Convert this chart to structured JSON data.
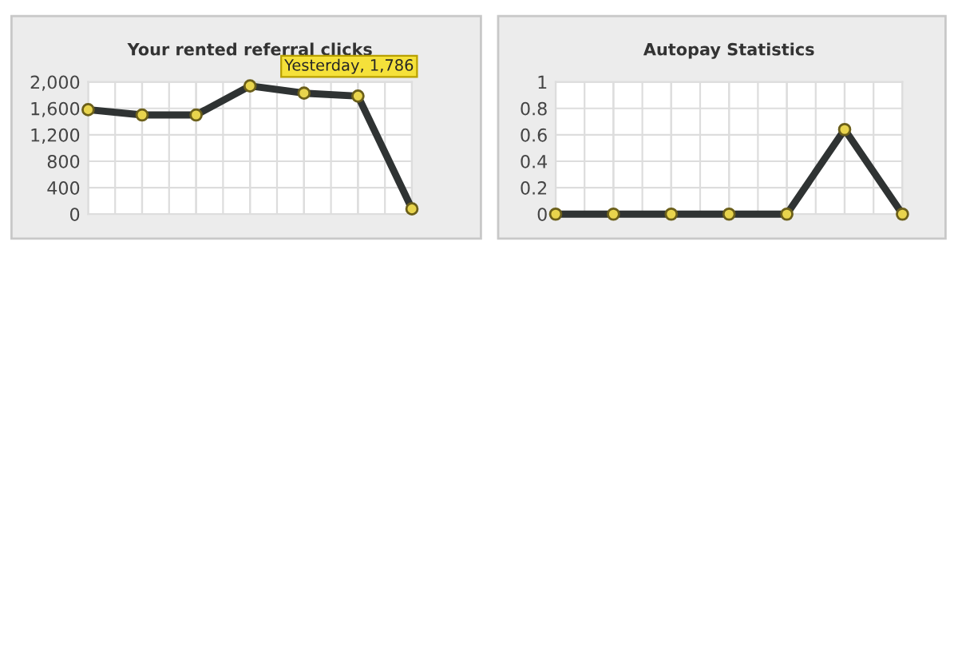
{
  "chart_data": [
    {
      "type": "line",
      "title": "Your rented referral clicks",
      "categories": [
        null,
        null,
        null,
        null,
        null,
        null,
        null
      ],
      "series": [
        {
          "color": "#2f3333",
          "values": [
            1580,
            1500,
            1500,
            1940,
            1830,
            1786,
            80
          ]
        }
      ],
      "ylim": [
        0,
        2000
      ],
      "yticks": [
        0,
        {
          "value": 400,
          "label": "400"
        },
        {
          "value": 800,
          "label": "800"
        },
        {
          "value": 1200,
          "label": "1,200"
        },
        {
          "value": 1600,
          "label": "1,600"
        },
        {
          "value": 2000,
          "label": "2,000"
        }
      ],
      "annotations": [
        {
          "text": "Yesterday, 1,786",
          "y": 1786
        }
      ],
      "grid": true,
      "marker": "circle",
      "line_style": "solid"
    },
    {
      "type": "line",
      "title": "Autopay Statistics",
      "categories": [
        null,
        null,
        null,
        null,
        null,
        null,
        null
      ],
      "series": [
        {
          "color": "#2f3333",
          "values": [
            0,
            0,
            0,
            0,
            0,
            0.64,
            0
          ]
        }
      ],
      "ylim": [
        0,
        1
      ],
      "yticks": [
        0,
        0.2,
        0.4,
        0.6,
        0.8,
        1
      ],
      "grid": true,
      "marker": "circle",
      "line_style": "solid"
    }
  ]
}
